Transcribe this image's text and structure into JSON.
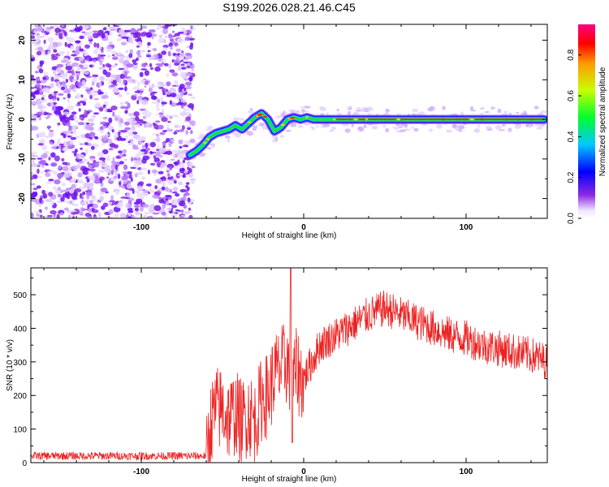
{
  "title": "S199.2026.028.21.46.C45",
  "chart_data": [
    {
      "type": "heatmap",
      "name": "spectrogram",
      "xlabel": "Height of straight line (km)",
      "ylabel": "Frequency (Hz)",
      "xlim": [
        -168,
        150
      ],
      "ylim": [
        -25,
        24
      ],
      "xticks": [
        -100,
        0,
        100
      ],
      "yticks": [
        -20,
        -10,
        0,
        10,
        20
      ],
      "noise_region_x": [
        -168,
        -68
      ],
      "ridge": {
        "x": [
          -70,
          -66,
          -62,
          -58,
          -54,
          -50,
          -46,
          -42,
          -38,
          -34,
          -30,
          -26,
          -22,
          -18,
          -14,
          -10,
          -6,
          -2,
          2,
          6,
          10,
          20,
          40,
          60,
          80,
          100,
          120,
          140,
          148
        ],
        "y": [
          -9,
          -8,
          -6.5,
          -4.5,
          -3.5,
          -3,
          -2.5,
          -1.5,
          -2.5,
          -1,
          0.5,
          1.5,
          0,
          -3,
          -2,
          0,
          0.5,
          0,
          0.5,
          0,
          0,
          0,
          0,
          0,
          0,
          0,
          0,
          0,
          0
        ]
      },
      "colorbar": {
        "label": "Normalized spectral amplitude",
        "range": [
          0,
          0.95
        ],
        "ticks": [
          0.0,
          0.2,
          0.4,
          0.6,
          0.8
        ],
        "tick_labels": [
          "0.0",
          "0.2",
          "0.4",
          "0.6",
          "0.8"
        ]
      }
    },
    {
      "type": "line",
      "name": "snr",
      "xlabel": "Height of straight line (km)",
      "ylabel": "SNR (10 * v/v)",
      "xlim": [
        -168,
        150
      ],
      "ylim": [
        0,
        580
      ],
      "xticks": [
        -100,
        0,
        100
      ],
      "yticks": [
        0,
        100,
        200,
        300,
        400,
        500
      ],
      "color": "#ee2222",
      "trend": {
        "x": [
          -168,
          -60,
          -57,
          -54,
          -50,
          -46,
          -42,
          -38,
          -34,
          -30,
          -26,
          -22,
          -18,
          -14,
          -10,
          -8,
          -6,
          -4,
          -2,
          0,
          5,
          10,
          20,
          30,
          40,
          50,
          60,
          70,
          80,
          90,
          100,
          110,
          120,
          130,
          140,
          150
        ],
        "y": [
          20,
          20,
          120,
          160,
          160,
          130,
          150,
          120,
          150,
          120,
          190,
          200,
          260,
          280,
          300,
          260,
          250,
          280,
          250,
          250,
          300,
          350,
          380,
          410,
          440,
          460,
          440,
          420,
          400,
          380,
          370,
          350,
          340,
          330,
          320,
          300
        ]
      }
    }
  ]
}
